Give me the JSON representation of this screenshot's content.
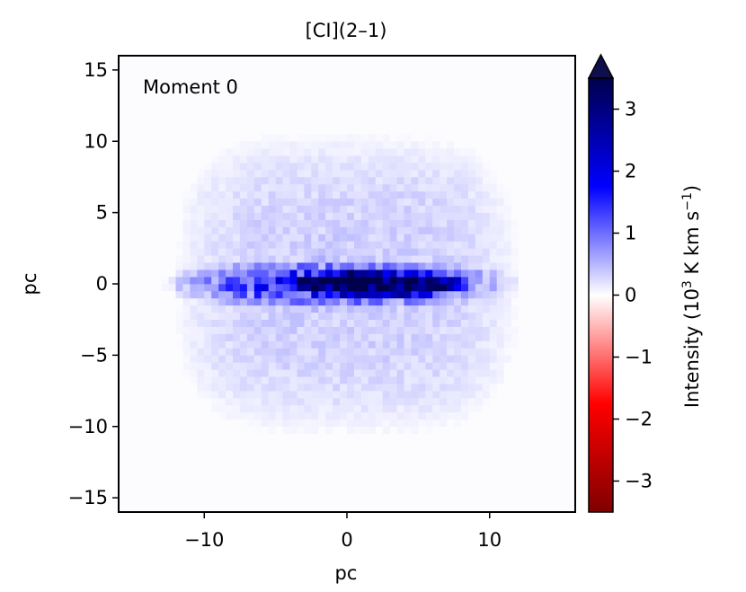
{
  "chart_data": {
    "type": "heatmap",
    "title": "[CI](2–1)",
    "annotation": "Moment 0",
    "xlabel": "pc",
    "ylabel": "pc",
    "xlim": [
      -16,
      16
    ],
    "ylim": [
      -16,
      16
    ],
    "x_ticks": [
      -10,
      0,
      10
    ],
    "x_tick_labels": [
      "−10",
      "0",
      "10"
    ],
    "y_ticks": [
      -15,
      -10,
      -5,
      0,
      5,
      10,
      15
    ],
    "y_tick_labels": [
      "−15",
      "−10",
      "−5",
      "0",
      "5",
      "10",
      "15"
    ],
    "grid": false,
    "colorbar": {
      "label_prefix": "Intensity (10",
      "label_exp1": "3",
      "label_mid": " K km s",
      "label_exp2": "−1",
      "label_suffix": ")",
      "vmin": -3.5,
      "vmax": 3.5,
      "extend": "max",
      "colormap": "seismic",
      "ticks": [
        -3,
        -2,
        -1,
        0,
        1,
        2,
        3
      ],
      "tick_labels": [
        "−3",
        "−2",
        "−1",
        "0",
        "1",
        "2",
        "3"
      ]
    },
    "emission_structure": {
      "diffuse_halo": {
        "x_extent_pc": [
          -11.5,
          11.5
        ],
        "y_extent_pc": [
          -10,
          10
        ],
        "typical_intensity": 0.25
      },
      "disk": {
        "x_extent_pc": [
          -13.5,
          12.5
        ],
        "y_extent_pc": [
          -2,
          2
        ],
        "typical_intensity": 1.2
      },
      "core": {
        "x_extent_pc": [
          -5,
          9
        ],
        "y_extent_pc": [
          -1,
          1
        ],
        "peak_intensity": 3.5
      }
    }
  }
}
